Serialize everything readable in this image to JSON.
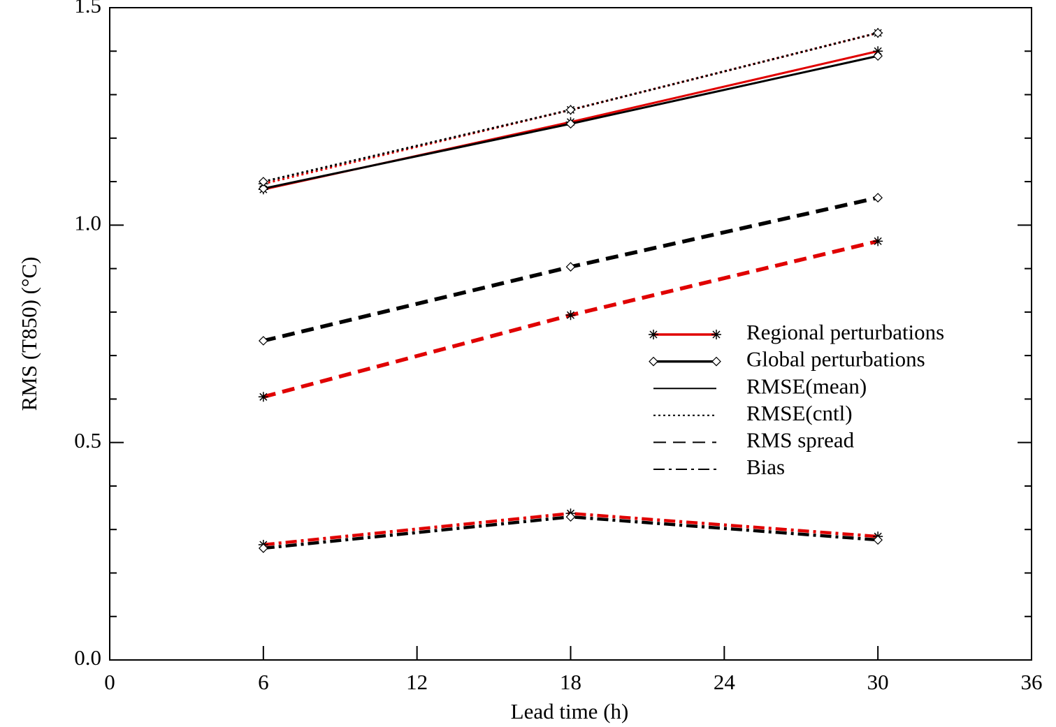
{
  "chart_data": {
    "type": "line",
    "x_label": "Lead time (h)",
    "y_label": "RMS (T850) (°C)",
    "x": [
      6,
      18,
      30
    ],
    "xlim": [
      0,
      36
    ],
    "xticks": [
      0,
      6,
      12,
      18,
      24,
      30,
      36
    ],
    "ylim": [
      0,
      1.5
    ],
    "yticks": [
      {
        "value": 0,
        "label": "0.0"
      },
      0.5,
      {
        "value": 1,
        "label": "1.0"
      },
      1.5
    ],
    "groups": [
      {
        "name": "Regional perturbations",
        "color": "#e00000",
        "marker": "star",
        "lines": [
          [
            1.082,
            1.237,
            1.4
          ],
          [
            1.095,
            1.265,
            1.442
          ],
          [
            0.605,
            0.793,
            0.963
          ],
          [
            0.265,
            0.337,
            0.284
          ]
        ]
      },
      {
        "name": "Global perturbations",
        "color": "#000000",
        "marker": "diamond",
        "lines": [
          [
            1.084,
            1.233,
            1.389
          ],
          [
            1.1,
            1.265,
            1.442
          ],
          [
            0.734,
            0.904,
            1.063
          ],
          [
            0.257,
            0.329,
            0.276
          ]
        ]
      }
    ],
    "styles": [
      {
        "name": "RMSE(mean)",
        "dash": "solid"
      },
      {
        "name": "RMSE(cntl)",
        "dash": "dotted"
      },
      {
        "name": "RMS spread",
        "dash": "dashed"
      },
      {
        "name": "Bias",
        "dash": "dashdot"
      }
    ]
  }
}
